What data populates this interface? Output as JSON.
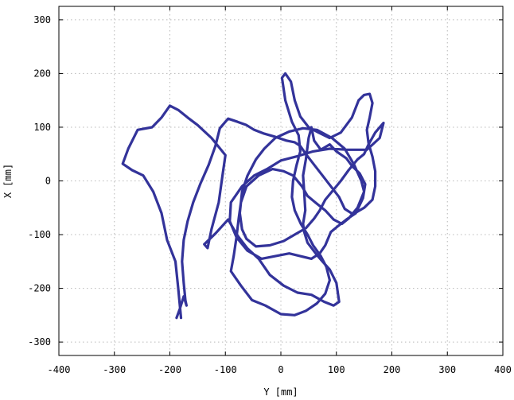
{
  "chart_data": {
    "type": "line",
    "title": "",
    "xlabel": "Y [mm]",
    "ylabel": "X [mm]",
    "xlim": [
      -400,
      400
    ],
    "ylim": [
      -325,
      325
    ],
    "xticks": [
      -400,
      -300,
      -200,
      -100,
      0,
      100,
      200,
      300,
      400
    ],
    "yticks": [
      300,
      200,
      100,
      0,
      -100,
      -200,
      -300
    ],
    "grid": true,
    "legend": "none",
    "series": [
      {
        "color": "#33339a",
        "points": [
          [
            -180,
            -255
          ],
          [
            -185,
            -200
          ],
          [
            -190,
            -150
          ],
          [
            -205,
            -110
          ],
          [
            -215,
            -60
          ],
          [
            -230,
            -20
          ],
          [
            -248,
            10
          ],
          [
            -268,
            20
          ],
          [
            -285,
            32
          ],
          [
            -275,
            60
          ],
          [
            -258,
            95
          ],
          [
            -232,
            100
          ],
          [
            -215,
            118
          ],
          [
            -200,
            140
          ],
          [
            -185,
            132
          ],
          [
            -168,
            118
          ],
          [
            -150,
            104
          ],
          [
            -125,
            80
          ],
          [
            -100,
            48
          ],
          [
            -105,
            12
          ],
          [
            -112,
            -40
          ],
          [
            -125,
            -90
          ],
          [
            -132,
            -125
          ],
          [
            -138,
            -118
          ],
          [
            -118,
            -98
          ],
          [
            -95,
            -72
          ],
          [
            -78,
            -102
          ],
          [
            -60,
            -126
          ],
          [
            -40,
            -145
          ],
          [
            -20,
            -175
          ],
          [
            5,
            -195
          ],
          [
            30,
            -208
          ],
          [
            55,
            -212
          ],
          [
            78,
            -225
          ],
          [
            95,
            -232
          ],
          [
            105,
            -225
          ],
          [
            100,
            -190
          ],
          [
            88,
            -165
          ],
          [
            75,
            -150
          ],
          [
            65,
            -138
          ],
          [
            48,
            -115
          ],
          [
            42,
            -95
          ],
          [
            40,
            -80
          ],
          [
            44,
            -55
          ],
          [
            42,
            -20
          ],
          [
            40,
            10
          ],
          [
            45,
            40
          ],
          [
            50,
            80
          ],
          [
            55,
            100
          ],
          [
            60,
            75
          ],
          [
            72,
            58
          ],
          [
            88,
            68
          ],
          [
            100,
            55
          ],
          [
            118,
            42
          ],
          [
            128,
            28
          ],
          [
            142,
            14
          ],
          [
            152,
            -6
          ],
          [
            148,
            -32
          ],
          [
            135,
            -60
          ],
          [
            118,
            -72
          ],
          [
            102,
            -85
          ],
          [
            90,
            -95
          ],
          [
            80,
            -120
          ],
          [
            70,
            -135
          ],
          [
            55,
            -145
          ],
          [
            35,
            -140
          ],
          [
            15,
            -135
          ],
          [
            -10,
            -140
          ],
          [
            -35,
            -145
          ],
          [
            -60,
            -130
          ],
          [
            -80,
            -105
          ],
          [
            -92,
            -75
          ],
          [
            -90,
            -40
          ],
          [
            -70,
            -10
          ],
          [
            -48,
            10
          ],
          [
            -25,
            22
          ],
          [
            0,
            38
          ],
          [
            30,
            46
          ],
          [
            58,
            55
          ],
          [
            88,
            60
          ],
          [
            120,
            58
          ],
          [
            155,
            58
          ],
          [
            178,
            80
          ],
          [
            185,
            108
          ],
          [
            170,
            90
          ],
          [
            158,
            68
          ],
          [
            150,
            50
          ],
          [
            138,
            40
          ],
          [
            122,
            20
          ],
          [
            108,
            0
          ],
          [
            92,
            -20
          ],
          [
            80,
            -35
          ],
          [
            70,
            -55
          ],
          [
            60,
            -70
          ],
          [
            45,
            -88
          ],
          [
            25,
            -100
          ],
          [
            5,
            -112
          ],
          [
            -20,
            -120
          ],
          [
            -45,
            -122
          ],
          [
            -62,
            -108
          ],
          [
            -70,
            -90
          ],
          [
            -74,
            -60
          ],
          [
            -70,
            -20
          ],
          [
            -60,
            10
          ],
          [
            -45,
            40
          ],
          [
            -30,
            60
          ],
          [
            -10,
            80
          ],
          [
            15,
            92
          ],
          [
            40,
            98
          ],
          [
            65,
            95
          ],
          [
            92,
            80
          ],
          [
            115,
            60
          ],
          [
            132,
            30
          ],
          [
            145,
            0
          ],
          [
            150,
            -20
          ],
          [
            138,
            -50
          ],
          [
            122,
            -70
          ],
          [
            110,
            -80
          ],
          [
            95,
            -72
          ],
          [
            80,
            -55
          ],
          [
            62,
            -40
          ],
          [
            48,
            -28
          ],
          [
            38,
            -10
          ],
          [
            22,
            10
          ],
          [
            5,
            18
          ],
          [
            -15,
            22
          ],
          [
            -40,
            10
          ],
          [
            -62,
            -10
          ],
          [
            -72,
            -40
          ],
          [
            -76,
            -70
          ],
          [
            -80,
            -105
          ],
          [
            -85,
            -140
          ],
          [
            -90,
            -168
          ],
          [
            -72,
            -195
          ],
          [
            -52,
            -222
          ],
          [
            -28,
            -232
          ],
          [
            0,
            -248
          ],
          [
            25,
            -250
          ],
          [
            45,
            -242
          ],
          [
            65,
            -228
          ],
          [
            80,
            -210
          ],
          [
            88,
            -185
          ],
          [
            82,
            -160
          ],
          [
            72,
            -140
          ],
          [
            58,
            -120
          ],
          [
            48,
            -100
          ],
          [
            36,
            -80
          ],
          [
            25,
            -55
          ],
          [
            20,
            -30
          ],
          [
            22,
            0
          ],
          [
            28,
            28
          ],
          [
            35,
            55
          ],
          [
            32,
            85
          ],
          [
            20,
            110
          ],
          [
            8,
            150
          ],
          [
            2,
            192
          ],
          [
            8,
            200
          ],
          [
            18,
            185
          ],
          [
            25,
            150
          ],
          [
            35,
            120
          ],
          [
            50,
            100
          ],
          [
            68,
            90
          ],
          [
            88,
            80
          ],
          [
            108,
            90
          ],
          [
            128,
            118
          ],
          [
            140,
            150
          ],
          [
            150,
            160
          ],
          [
            160,
            162
          ],
          [
            165,
            145
          ],
          [
            160,
            118
          ],
          [
            155,
            95
          ],
          [
            158,
            70
          ],
          [
            165,
            45
          ],
          [
            170,
            18
          ],
          [
            170,
            -10
          ],
          [
            165,
            -35
          ],
          [
            150,
            -50
          ],
          [
            130,
            -62
          ],
          [
            115,
            -52
          ],
          [
            105,
            -30
          ],
          [
            90,
            -10
          ],
          [
            75,
            10
          ],
          [
            60,
            30
          ],
          [
            45,
            50
          ],
          [
            35,
            65
          ],
          [
            25,
            72
          ],
          [
            10,
            75
          ],
          [
            -10,
            82
          ],
          [
            -30,
            88
          ],
          [
            -48,
            95
          ],
          [
            -62,
            104
          ],
          [
            -78,
            110
          ],
          [
            -95,
            116
          ],
          [
            -110,
            98
          ],
          [
            -118,
            65
          ],
          [
            -130,
            30
          ],
          [
            -145,
            -5
          ],
          [
            -158,
            -40
          ],
          [
            -168,
            -75
          ],
          [
            -175,
            -110
          ],
          [
            -178,
            -150
          ],
          [
            -175,
            -190
          ],
          [
            -172,
            -222
          ],
          [
            -170,
            -232
          ],
          [
            -175,
            -215
          ],
          [
            -182,
            -238
          ],
          [
            -188,
            -255
          ]
        ]
      }
    ]
  }
}
